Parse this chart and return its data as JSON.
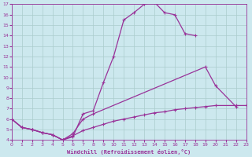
{
  "bg_color": "#cce8ee",
  "line_color": "#993399",
  "grid_color": "#aacccc",
  "xlabel": "Windchill (Refroidissement éolien,°C)",
  "xlim": [
    0,
    23
  ],
  "ylim": [
    4,
    17
  ],
  "xticks": [
    0,
    1,
    2,
    3,
    4,
    5,
    6,
    7,
    8,
    9,
    10,
    11,
    12,
    13,
    14,
    15,
    16,
    17,
    18,
    19,
    20,
    21,
    22,
    23
  ],
  "yticks": [
    4,
    5,
    6,
    7,
    8,
    9,
    10,
    11,
    12,
    13,
    14,
    15,
    16,
    17
  ],
  "curve1_x": [
    0,
    1,
    2,
    3,
    4,
    5,
    6,
    7,
    8,
    9,
    10,
    11,
    12,
    13,
    14,
    15,
    16,
    17,
    18
  ],
  "curve1_y": [
    6.0,
    5.2,
    5.0,
    4.7,
    4.5,
    4.0,
    4.3,
    6.5,
    6.8,
    9.5,
    12.0,
    15.5,
    16.2,
    17.0,
    17.2,
    16.2,
    16.0,
    14.2,
    14.0
  ],
  "curve2_x": [
    0,
    1,
    2,
    3,
    4,
    5,
    6,
    7,
    8,
    19,
    20,
    22
  ],
  "curve2_y": [
    6.0,
    5.2,
    5.0,
    4.7,
    4.5,
    4.0,
    4.6,
    6.0,
    6.5,
    11.0,
    9.2,
    7.2
  ],
  "curve3_x": [
    0,
    1,
    2,
    3,
    4,
    5,
    6,
    7,
    8,
    9,
    10,
    11,
    12,
    13,
    14,
    15,
    16,
    17,
    18,
    19,
    20,
    22,
    23
  ],
  "curve3_y": [
    6.0,
    5.2,
    5.0,
    4.7,
    4.5,
    4.0,
    4.4,
    4.9,
    5.2,
    5.5,
    5.8,
    6.0,
    6.2,
    6.4,
    6.6,
    6.7,
    6.9,
    7.0,
    7.1,
    7.2,
    7.3,
    7.3,
    7.3
  ]
}
